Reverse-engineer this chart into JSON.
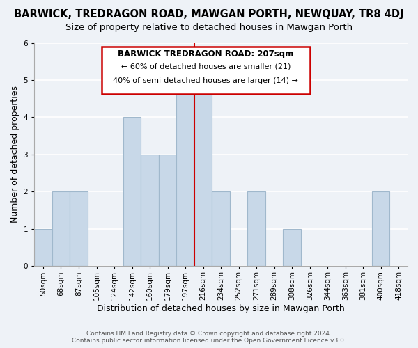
{
  "title": "BARWICK, TREDRAGON ROAD, MAWGAN PORTH, NEWQUAY, TR8 4DJ",
  "subtitle": "Size of property relative to detached houses in Mawgan Porth",
  "xlabel": "Distribution of detached houses by size in Mawgan Porth",
  "ylabel": "Number of detached properties",
  "bar_labels": [
    "50sqm",
    "68sqm",
    "87sqm",
    "105sqm",
    "124sqm",
    "142sqm",
    "160sqm",
    "179sqm",
    "197sqm",
    "216sqm",
    "234sqm",
    "252sqm",
    "271sqm",
    "289sqm",
    "308sqm",
    "326sqm",
    "344sqm",
    "363sqm",
    "381sqm",
    "400sqm",
    "418sqm"
  ],
  "bar_values": [
    1,
    2,
    2,
    0,
    0,
    4,
    3,
    3,
    5,
    5,
    2,
    0,
    2,
    0,
    1,
    0,
    0,
    0,
    0,
    2,
    0
  ],
  "bar_color": "#c8d8e8",
  "bar_edge_color": "#a0b8cc",
  "redline_index": 8,
  "annotation_title": "BARWICK TREDRAGON ROAD: 207sqm",
  "annotation_line1": "← 60% of detached houses are smaller (21)",
  "annotation_line2": "40% of semi-detached houses are larger (14) →",
  "annotation_box_color": "#ffffff",
  "annotation_border_color": "#cc0000",
  "redline_color": "#cc0000",
  "ylim": [
    0,
    6
  ],
  "yticks": [
    0,
    1,
    2,
    3,
    4,
    5,
    6
  ],
  "footer_line1": "Contains HM Land Registry data © Crown copyright and database right 2024.",
  "footer_line2": "Contains public sector information licensed under the Open Government Licence v3.0.",
  "background_color": "#eef2f7",
  "grid_color": "#ffffff",
  "title_fontsize": 10.5,
  "subtitle_fontsize": 9.5,
  "axis_label_fontsize": 9,
  "tick_fontsize": 7.5,
  "footer_fontsize": 6.5
}
